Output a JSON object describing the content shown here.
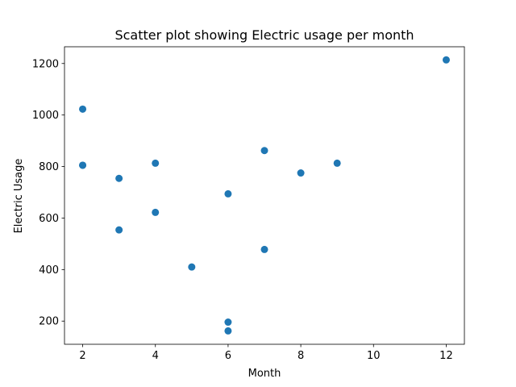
{
  "chart_data": {
    "type": "scatter",
    "title": "Scatter plot showing Electric usage per month",
    "xlabel": "Month",
    "ylabel": "Electric Usage",
    "xlim": [
      1.5,
      12.5
    ],
    "ylim": [
      110,
      1265
    ],
    "xticks": [
      2,
      4,
      6,
      8,
      10,
      12
    ],
    "yticks": [
      200,
      400,
      600,
      800,
      1000,
      1200
    ],
    "grid": false,
    "marker_color": "#1f77b4",
    "series": [
      {
        "x": [
          2,
          2,
          2,
          3,
          3,
          4,
          4,
          5,
          6,
          6,
          6,
          7,
          7,
          8,
          9,
          12
        ],
        "y": [
          1023,
          805,
          805,
          754,
          554,
          813,
          622,
          410,
          694,
          196,
          162,
          862,
          478,
          775,
          813,
          1214
        ]
      }
    ]
  }
}
